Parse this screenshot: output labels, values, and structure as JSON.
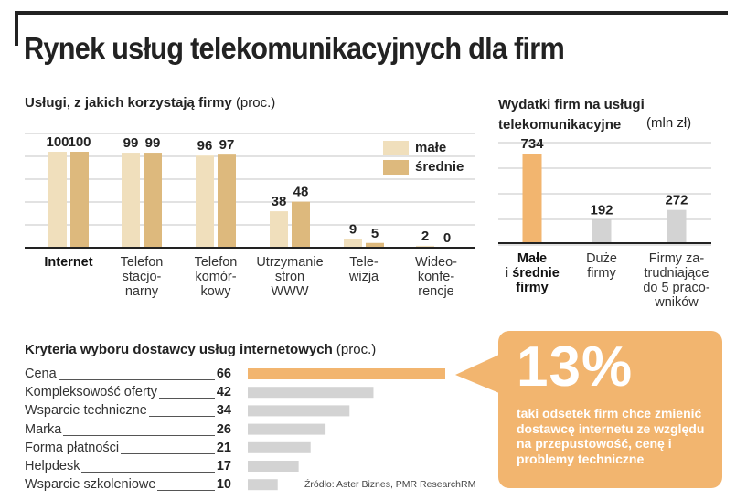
{
  "title": "Rynek usług telekomunikacyjnych dla firm",
  "source": "Źródło: Aster Biznes, PMR Research",
  "author": "RM",
  "colors": {
    "male": "#f0dfbc",
    "srednie": "#ddb97d",
    "orange": "#f2b56f",
    "gray": "#d3d3d3"
  },
  "chart_data": [
    {
      "type": "bar",
      "title": "Usługi, z jakich korzystają firmy",
      "unit": "(proc.)",
      "categories": [
        "Internet",
        "Telefon\nstacjo-\nnarny",
        "Telefon\nkomór-\nkowy",
        "Utrzymanie\nstron\nWWW",
        "Tele-\nwizja",
        "Wideo-\nkonfe-\nrencje"
      ],
      "series": [
        {
          "name": "małe",
          "values": [
            100,
            99,
            96,
            38,
            9,
            2
          ]
        },
        {
          "name": "średnie",
          "values": [
            100,
            99,
            97,
            48,
            5,
            0
          ]
        }
      ],
      "ylim": [
        0,
        100
      ],
      "grid": true,
      "legend": "top-right"
    },
    {
      "type": "bar",
      "title": "Wydatki firm na usługi telekomunikacyjne",
      "unit": "(mln zł)",
      "categories": [
        "Małe\ni średnie\nfirmy",
        "Duże\nfirmy",
        "Firmy za-\ntrudniające\ndo 5 praco-\nwników"
      ],
      "values": [
        734,
        192,
        272
      ],
      "ylim": [
        0,
        734
      ],
      "grid": true
    },
    {
      "type": "bar",
      "orientation": "horizontal",
      "title": "Kryteria wyboru dostawcy usług internetowych",
      "unit": "(proc.)",
      "categories": [
        "Cena",
        "Kompleksowość oferty",
        "Wsparcie techniczne",
        "Marka",
        "Forma płatności",
        "Helpdesk",
        "Wsparcie szkoleniowe"
      ],
      "values": [
        66,
        42,
        34,
        26,
        21,
        17,
        10
      ],
      "xlim": [
        0,
        66
      ]
    }
  ],
  "callout": {
    "value": "13%",
    "text": "taki odsetek firm chce zmienić dostawcę internetu ze względu na przepustowość, cenę i problemy techniczne"
  }
}
